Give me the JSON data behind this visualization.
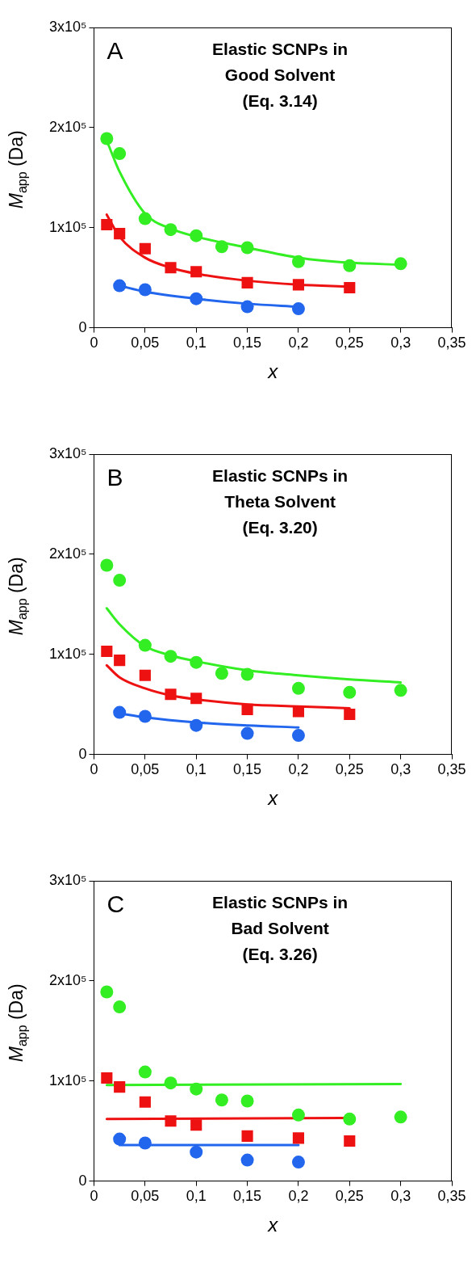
{
  "chart_data": [
    {
      "type": "scatter",
      "title": "Elastic SCNPs in\nGood Solvent\n(Eq. 3.14)",
      "annotations": [
        "A"
      ],
      "xlabel": "x",
      "ylabel": "M$_{app}$ (Da)",
      "xlim": [
        0,
        0.35
      ],
      "ylim": [
        0,
        300000
      ],
      "xticks": [
        {
          "value": 0,
          "label": "0"
        },
        {
          "value": 0.05,
          "label": "0,05"
        },
        {
          "value": 0.1,
          "label": "0,1"
        },
        {
          "value": 0.15,
          "label": "0,15"
        },
        {
          "value": 0.2,
          "label": "0,2"
        },
        {
          "value": 0.25,
          "label": "0,25"
        },
        {
          "value": 0.3,
          "label": "0,3"
        },
        {
          "value": 0.35,
          "label": "0,35"
        }
      ],
      "yticks": [
        {
          "value": 0,
          "label": "0"
        },
        {
          "value": 100000,
          "label": "1x10⁵"
        },
        {
          "value": 200000,
          "label": "2x10⁵"
        },
        {
          "value": 300000,
          "label": "3x10⁵"
        }
      ],
      "grid": false,
      "legend": false,
      "series": [
        {
          "type": "scatter",
          "marker": "circle",
          "color": "#33ee22",
          "x": [
            0.0125,
            0.025,
            0.05,
            0.075,
            0.1,
            0.125,
            0.15,
            0.2,
            0.25,
            0.3
          ],
          "values": [
            189000,
            174000,
            109000,
            98000,
            92000,
            81000,
            80000,
            66000,
            62000,
            64000
          ]
        },
        {
          "type": "scatter",
          "marker": "square",
          "color": "#ee1111",
          "x": [
            0.0125,
            0.025,
            0.05,
            0.075,
            0.1,
            0.15,
            0.2,
            0.25
          ],
          "values": [
            103000,
            94000,
            79000,
            60000,
            56000,
            45000,
            43000,
            40000
          ]
        },
        {
          "type": "scatter",
          "marker": "circle",
          "color": "#2266ee",
          "x": [
            0.025,
            0.05,
            0.1,
            0.15,
            0.2
          ],
          "values": [
            42000,
            38000,
            29000,
            21000,
            19000
          ]
        },
        {
          "type": "line",
          "color": "#33ee22",
          "x": [
            0.0125,
            0.025,
            0.05,
            0.075,
            0.1,
            0.15,
            0.2,
            0.25,
            0.3
          ],
          "values": [
            187000,
            156000,
            114000,
            99000,
            91000,
            80000,
            70000,
            65000,
            63000
          ]
        },
        {
          "type": "line",
          "color": "#ee1111",
          "x": [
            0.0125,
            0.025,
            0.05,
            0.075,
            0.1,
            0.15,
            0.2,
            0.25
          ],
          "values": [
            113000,
            91000,
            70000,
            60000,
            54000,
            47000,
            43000,
            41000
          ]
        },
        {
          "type": "line",
          "color": "#2266ee",
          "x": [
            0.025,
            0.05,
            0.1,
            0.15,
            0.2
          ],
          "values": [
            42000,
            36000,
            29000,
            24000,
            21000
          ]
        }
      ]
    },
    {
      "type": "scatter",
      "title": "Elastic SCNPs in\nTheta Solvent\n(Eq. 3.20)",
      "annotations": [
        "B"
      ],
      "xlabel": "x",
      "ylabel": "M$_{app}$ (Da)",
      "xlim": [
        0,
        0.35
      ],
      "ylim": [
        0,
        300000
      ],
      "xticks": [
        {
          "value": 0,
          "label": "0"
        },
        {
          "value": 0.05,
          "label": "0,05"
        },
        {
          "value": 0.1,
          "label": "0,1"
        },
        {
          "value": 0.15,
          "label": "0,15"
        },
        {
          "value": 0.2,
          "label": "0,2"
        },
        {
          "value": 0.25,
          "label": "0,25"
        },
        {
          "value": 0.3,
          "label": "0,3"
        },
        {
          "value": 0.35,
          "label": "0,35"
        }
      ],
      "yticks": [
        {
          "value": 0,
          "label": "0"
        },
        {
          "value": 100000,
          "label": "1x10⁵"
        },
        {
          "value": 200000,
          "label": "2x10⁵"
        },
        {
          "value": 300000,
          "label": "3x10⁵"
        }
      ],
      "grid": false,
      "legend": false,
      "series": [
        {
          "type": "scatter",
          "marker": "circle",
          "color": "#33ee22",
          "x": [
            0.0125,
            0.025,
            0.05,
            0.075,
            0.1,
            0.125,
            0.15,
            0.2,
            0.25,
            0.3
          ],
          "values": [
            189000,
            174000,
            109000,
            98000,
            92000,
            81000,
            80000,
            66000,
            62000,
            64000
          ]
        },
        {
          "type": "scatter",
          "marker": "square",
          "color": "#ee1111",
          "x": [
            0.0125,
            0.025,
            0.05,
            0.075,
            0.1,
            0.15,
            0.2,
            0.25
          ],
          "values": [
            103000,
            94000,
            79000,
            60000,
            56000,
            45000,
            43000,
            40000
          ]
        },
        {
          "type": "scatter",
          "marker": "circle",
          "color": "#2266ee",
          "x": [
            0.025,
            0.05,
            0.1,
            0.15,
            0.2
          ],
          "values": [
            42000,
            38000,
            29000,
            21000,
            19000
          ]
        },
        {
          "type": "line",
          "color": "#33ee22",
          "x": [
            0.0125,
            0.025,
            0.05,
            0.075,
            0.1,
            0.15,
            0.2,
            0.25,
            0.3
          ],
          "values": [
            146000,
            130000,
            108000,
            99000,
            93000,
            84000,
            79000,
            75000,
            72000
          ]
        },
        {
          "type": "line",
          "color": "#ee1111",
          "x": [
            0.0125,
            0.025,
            0.05,
            0.075,
            0.1,
            0.15,
            0.2,
            0.25
          ],
          "values": [
            89000,
            77000,
            66000,
            59000,
            55000,
            50000,
            48000,
            46000
          ]
        },
        {
          "type": "line",
          "color": "#2266ee",
          "x": [
            0.025,
            0.05,
            0.1,
            0.15,
            0.2
          ],
          "values": [
            41000,
            37000,
            32000,
            29000,
            27000
          ]
        }
      ]
    },
    {
      "type": "scatter",
      "title": "Elastic SCNPs in\nBad Solvent\n(Eq. 3.26)",
      "annotations": [
        "C"
      ],
      "xlabel": "x",
      "ylabel": "M$_{app}$ (Da)",
      "xlim": [
        0,
        0.35
      ],
      "ylim": [
        0,
        300000
      ],
      "xticks": [
        {
          "value": 0,
          "label": "0"
        },
        {
          "value": 0.05,
          "label": "0,05"
        },
        {
          "value": 0.1,
          "label": "0,1"
        },
        {
          "value": 0.15,
          "label": "0,15"
        },
        {
          "value": 0.2,
          "label": "0,2"
        },
        {
          "value": 0.25,
          "label": "0,25"
        },
        {
          "value": 0.3,
          "label": "0,3"
        },
        {
          "value": 0.35,
          "label": "0,35"
        }
      ],
      "yticks": [
        {
          "value": 0,
          "label": "0"
        },
        {
          "value": 100000,
          "label": "1x10⁵"
        },
        {
          "value": 200000,
          "label": "2x10⁵"
        },
        {
          "value": 300000,
          "label": "3x10⁵"
        }
      ],
      "grid": false,
      "legend": false,
      "series": [
        {
          "type": "scatter",
          "marker": "circle",
          "color": "#33ee22",
          "x": [
            0.0125,
            0.025,
            0.05,
            0.075,
            0.1,
            0.125,
            0.15,
            0.2,
            0.25,
            0.3
          ],
          "values": [
            189000,
            174000,
            109000,
            98000,
            92000,
            81000,
            80000,
            66000,
            62000,
            64000
          ]
        },
        {
          "type": "scatter",
          "marker": "square",
          "color": "#ee1111",
          "x": [
            0.0125,
            0.025,
            0.05,
            0.075,
            0.1,
            0.15,
            0.2,
            0.25
          ],
          "values": [
            103000,
            94000,
            79000,
            60000,
            56000,
            45000,
            43000,
            40000
          ]
        },
        {
          "type": "scatter",
          "marker": "circle",
          "color": "#2266ee",
          "x": [
            0.025,
            0.05,
            0.1,
            0.15,
            0.2
          ],
          "values": [
            42000,
            38000,
            29000,
            21000,
            19000
          ]
        },
        {
          "type": "line",
          "color": "#33ee22",
          "x": [
            0.0125,
            0.3
          ],
          "values": [
            96000,
            97000
          ]
        },
        {
          "type": "line",
          "color": "#ee1111",
          "x": [
            0.0125,
            0.25
          ],
          "values": [
            62000,
            63000
          ]
        },
        {
          "type": "line",
          "color": "#2266ee",
          "x": [
            0.025,
            0.2
          ],
          "values": [
            36000,
            36000
          ]
        }
      ]
    }
  ]
}
